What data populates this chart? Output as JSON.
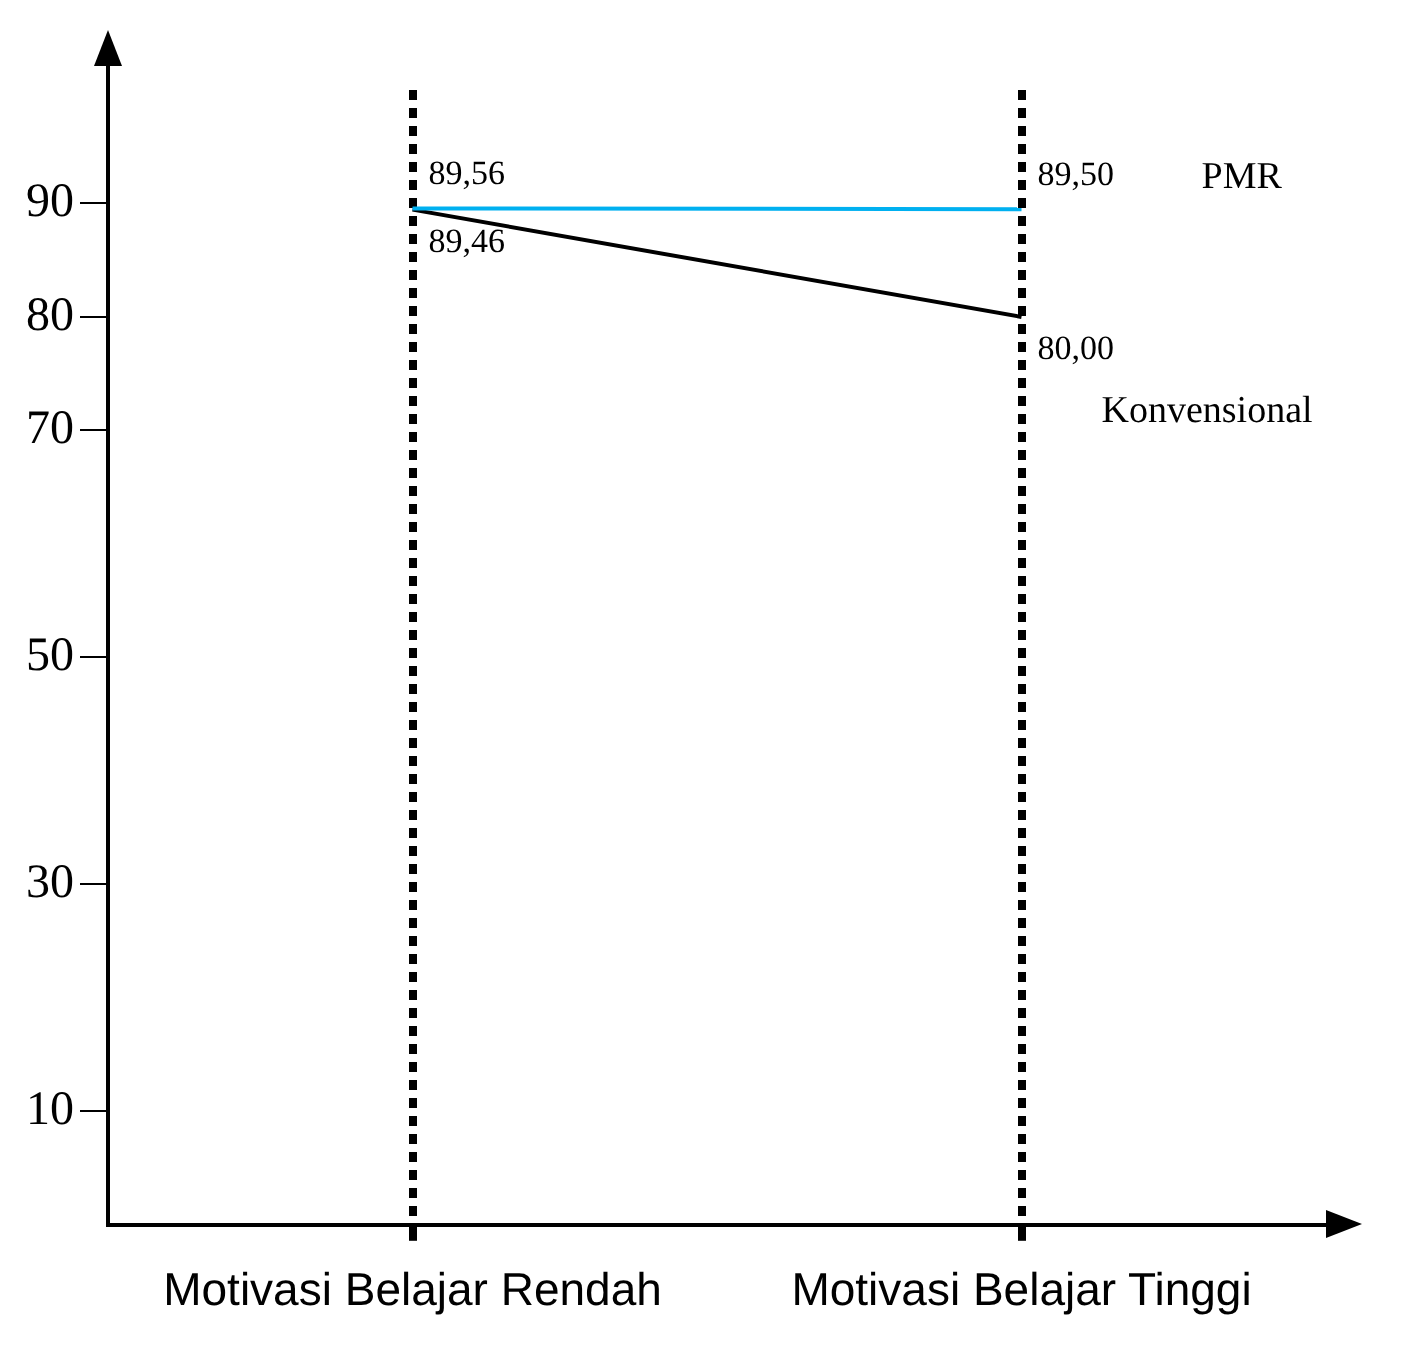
{
  "chart_data": {
    "type": "line",
    "categories": [
      "Motivasi Belajar Rendah",
      "Motivasi Belajar Tinggi"
    ],
    "series": [
      {
        "name": "PMR",
        "color": "#00b0f0",
        "values": [
          89.56,
          89.5
        ],
        "value_labels": [
          "89,56",
          "89,50"
        ]
      },
      {
        "name": "Konvensional",
        "color": "#000000",
        "values": [
          89.46,
          80.0
        ],
        "value_labels": [
          "89,46",
          "80,00"
        ]
      }
    ],
    "ylim": [
      0,
      100
    ],
    "yticks": [
      10,
      30,
      50,
      70,
      80,
      90
    ],
    "grid": "x",
    "legend": false,
    "marker": "none",
    "line_style": "solid"
  }
}
